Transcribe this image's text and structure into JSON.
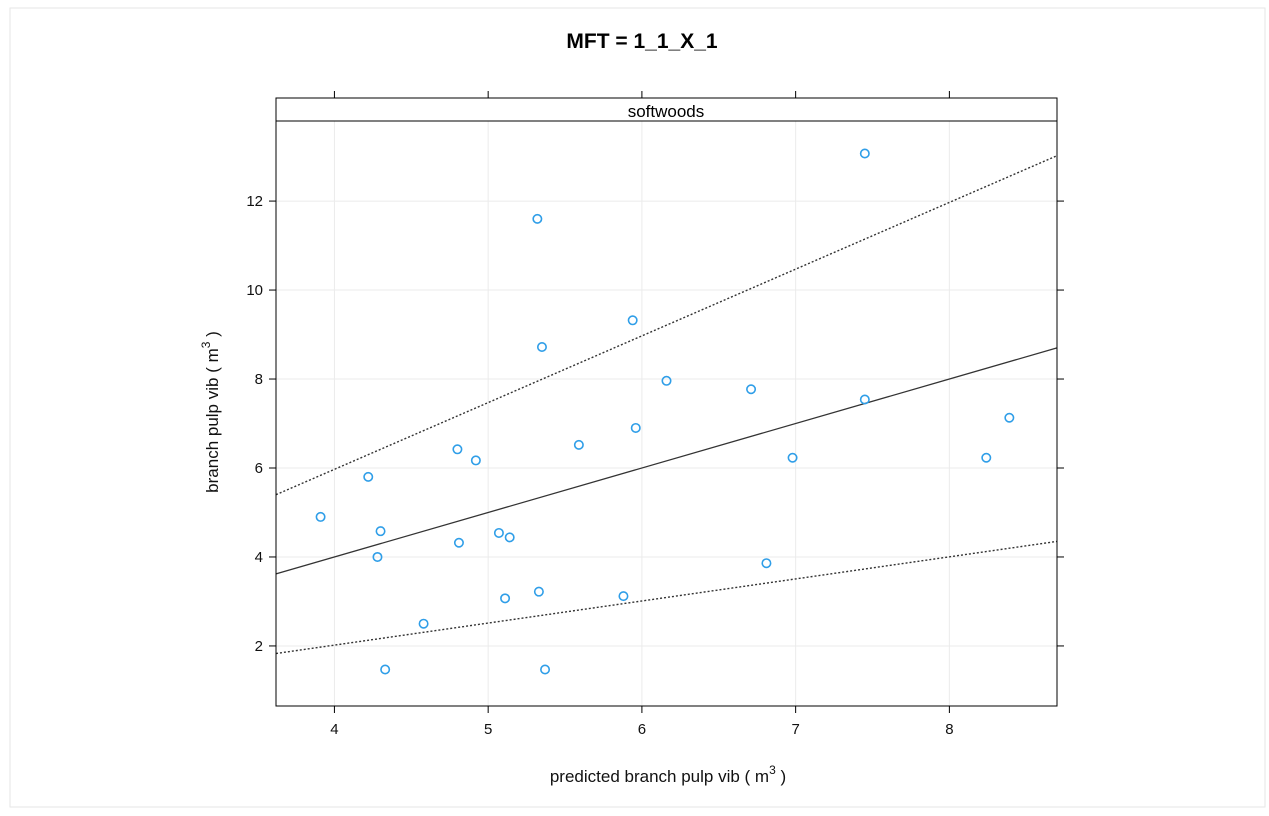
{
  "chart_data": {
    "type": "scatter",
    "title": "MFT = 1_1_X_1",
    "strip_label": "softwoods",
    "xlabel_main": "predicted branch pulp vib (  m",
    "xlabel_sup": "3",
    "xlabel_end": " )",
    "ylabel_main": "branch pulp vib ( m",
    "ylabel_sup": "3",
    "ylabel_end": " )",
    "xlim": [
      3.62,
      8.7
    ],
    "ylim": [
      0.65,
      13.8
    ],
    "x_ticks": [
      4,
      5,
      6,
      7,
      8
    ],
    "y_ticks": [
      2,
      4,
      6,
      8,
      10,
      12
    ],
    "x_tick_labels": [
      "4",
      "5",
      "6",
      "7",
      "8"
    ],
    "y_tick_labels": [
      "2",
      "4",
      "6",
      "8",
      "10",
      "12"
    ],
    "grid": true,
    "point_color": "#2f9ee8",
    "line_color": "#333333",
    "points": [
      {
        "x": 3.91,
        "y": 4.9
      },
      {
        "x": 4.22,
        "y": 5.8
      },
      {
        "x": 4.28,
        "y": 4.0
      },
      {
        "x": 4.3,
        "y": 4.58
      },
      {
        "x": 4.33,
        "y": 1.47
      },
      {
        "x": 4.58,
        "y": 2.5
      },
      {
        "x": 4.8,
        "y": 6.42
      },
      {
        "x": 4.81,
        "y": 4.32
      },
      {
        "x": 4.92,
        "y": 6.17
      },
      {
        "x": 5.07,
        "y": 4.54
      },
      {
        "x": 5.11,
        "y": 3.07
      },
      {
        "x": 5.14,
        "y": 4.44
      },
      {
        "x": 5.32,
        "y": 11.6
      },
      {
        "x": 5.33,
        "y": 3.22
      },
      {
        "x": 5.35,
        "y": 8.72
      },
      {
        "x": 5.37,
        "y": 1.47
      },
      {
        "x": 5.59,
        "y": 6.52
      },
      {
        "x": 5.88,
        "y": 3.12
      },
      {
        "x": 5.94,
        "y": 9.32
      },
      {
        "x": 5.96,
        "y": 6.9
      },
      {
        "x": 6.16,
        "y": 7.96
      },
      {
        "x": 6.71,
        "y": 7.77
      },
      {
        "x": 6.81,
        "y": 3.86
      },
      {
        "x": 6.98,
        "y": 6.23
      },
      {
        "x": 7.45,
        "y": 13.07
      },
      {
        "x": 7.45,
        "y": 7.54
      },
      {
        "x": 8.24,
        "y": 6.23
      },
      {
        "x": 8.39,
        "y": 7.13
      }
    ],
    "lines": [
      {
        "style": "solid",
        "x": [
          3.62,
          8.7
        ],
        "y": [
          3.62,
          8.7
        ]
      },
      {
        "style": "dashed",
        "x": [
          3.62,
          8.7
        ],
        "y": [
          5.4,
          13.02
        ]
      },
      {
        "style": "dashed",
        "x": [
          3.62,
          8.7
        ],
        "y": [
          1.83,
          4.35
        ]
      }
    ]
  }
}
